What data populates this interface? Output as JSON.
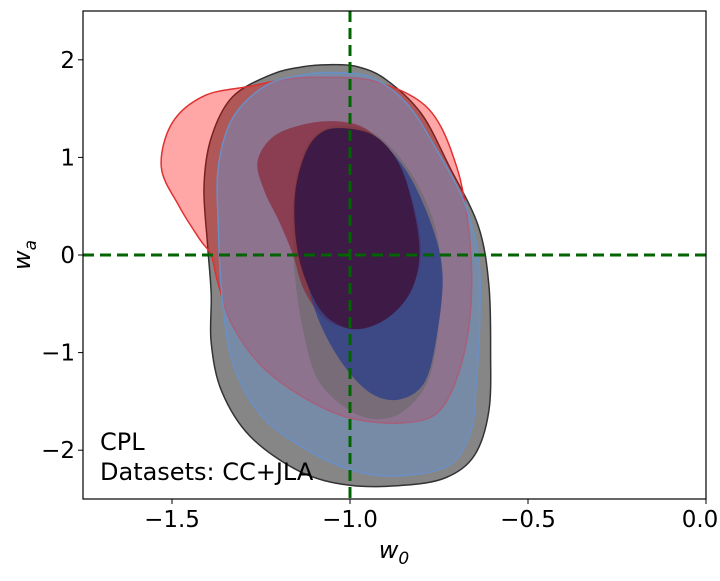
{
  "chart_data": {
    "type": "contour",
    "title": "",
    "xlabel": {
      "main": "w",
      "sub": "0"
    },
    "ylabel": {
      "main": "w",
      "sub": "a"
    },
    "xlim": [
      -1.75,
      0.0
    ],
    "ylim": [
      -2.5,
      2.5
    ],
    "x_ticks": [
      {
        "value": -1.5,
        "label": "−1.5"
      },
      {
        "value": -1.0,
        "label": "−1.0"
      },
      {
        "value": -0.5,
        "label": "−0.5"
      },
      {
        "value": 0.0,
        "label": "0.0"
      }
    ],
    "y_ticks": [
      {
        "value": 2,
        "label": "2"
      },
      {
        "value": 1,
        "label": "1"
      },
      {
        "value": 0,
        "label": "0"
      },
      {
        "value": -1,
        "label": "−1"
      },
      {
        "value": -2,
        "label": "−2"
      }
    ],
    "grid": false,
    "reference_lines": {
      "x": -1.0,
      "y": 0.0,
      "color": "#006400",
      "style": "dashed"
    },
    "annotation": {
      "line1": "CPL",
      "line2": "Datasets: CC+JLA"
    },
    "contours": [
      {
        "id": "gray-outer",
        "fill": "#808080",
        "fill_opacity": 0.95,
        "stroke": "#333333",
        "points": [
          [
            -1.06,
            1.95
          ],
          [
            -0.98,
            1.93
          ],
          [
            -0.9,
            1.8
          ],
          [
            -0.8,
            1.45
          ],
          [
            -0.72,
            0.9
          ],
          [
            -0.64,
            0.3
          ],
          [
            -0.61,
            -0.3
          ],
          [
            -0.605,
            -1.0
          ],
          [
            -0.61,
            -1.6
          ],
          [
            -0.65,
            -2.05
          ],
          [
            -0.73,
            -2.28
          ],
          [
            -0.85,
            -2.36
          ],
          [
            -1.0,
            -2.36
          ],
          [
            -1.14,
            -2.22
          ],
          [
            -1.28,
            -1.86
          ],
          [
            -1.36,
            -1.4
          ],
          [
            -1.39,
            -0.9
          ],
          [
            -1.39,
            -0.4
          ],
          [
            -1.4,
            0.1
          ],
          [
            -1.41,
            0.7
          ],
          [
            -1.39,
            1.2
          ],
          [
            -1.33,
            1.62
          ],
          [
            -1.22,
            1.85
          ],
          [
            -1.13,
            1.93
          ]
        ]
      },
      {
        "id": "red-outer",
        "fill": "#ff0000",
        "fill_opacity": 0.35,
        "stroke": "#e03030",
        "points": [
          [
            -1.09,
            1.82
          ],
          [
            -0.93,
            1.78
          ],
          [
            -0.78,
            1.5
          ],
          [
            -0.7,
            0.9
          ],
          [
            -0.665,
            0.2
          ],
          [
            -0.66,
            -0.5
          ],
          [
            -0.69,
            -1.15
          ],
          [
            -0.75,
            -1.6
          ],
          [
            -0.85,
            -1.72
          ],
          [
            -1.0,
            -1.67
          ],
          [
            -1.13,
            -1.46
          ],
          [
            -1.25,
            -1.13
          ],
          [
            -1.33,
            -0.72
          ],
          [
            -1.37,
            -0.3
          ],
          [
            -1.39,
            0.0
          ],
          [
            -1.42,
            0.15
          ],
          [
            -1.48,
            0.5
          ],
          [
            -1.53,
            0.9
          ],
          [
            -1.5,
            1.35
          ],
          [
            -1.41,
            1.63
          ],
          [
            -1.28,
            1.73
          ],
          [
            -1.18,
            1.8
          ]
        ]
      },
      {
        "id": "blue-outer",
        "fill": "#6a8fc5",
        "fill_opacity": 0.5,
        "stroke": "#6a8fc5",
        "points": [
          [
            -1.05,
            1.87
          ],
          [
            -0.94,
            1.82
          ],
          [
            -0.84,
            1.55
          ],
          [
            -0.76,
            1.1
          ],
          [
            -0.68,
            0.55
          ],
          [
            -0.64,
            0.0
          ],
          [
            -0.635,
            -0.6
          ],
          [
            -0.645,
            -1.3
          ],
          [
            -0.66,
            -1.8
          ],
          [
            -0.72,
            -2.15
          ],
          [
            -0.85,
            -2.26
          ],
          [
            -0.98,
            -2.22
          ],
          [
            -1.12,
            -2.0
          ],
          [
            -1.25,
            -1.64
          ],
          [
            -1.33,
            -1.1
          ],
          [
            -1.36,
            -0.4
          ],
          [
            -1.37,
            0.3
          ],
          [
            -1.37,
            0.9
          ],
          [
            -1.33,
            1.4
          ],
          [
            -1.24,
            1.73
          ],
          [
            -1.14,
            1.84
          ]
        ]
      },
      {
        "id": "gray-inner",
        "fill": "#666666",
        "fill_opacity": 0.55,
        "stroke": "none",
        "points": [
          [
            -1.03,
            1.33
          ],
          [
            -0.93,
            1.24
          ],
          [
            -0.84,
            0.9
          ],
          [
            -0.77,
            0.4
          ],
          [
            -0.745,
            -0.1
          ],
          [
            -0.75,
            -0.7
          ],
          [
            -0.78,
            -1.28
          ],
          [
            -0.85,
            -1.6
          ],
          [
            -0.93,
            -1.68
          ],
          [
            -1.01,
            -1.57
          ],
          [
            -1.09,
            -1.28
          ],
          [
            -1.13,
            -0.8
          ],
          [
            -1.155,
            -0.2
          ],
          [
            -1.16,
            0.5
          ],
          [
            -1.14,
            0.95
          ],
          [
            -1.1,
            1.22
          ]
        ]
      },
      {
        "id": "red-inner",
        "fill": "#8b1a2a",
        "fill_opacity": 0.6,
        "stroke": "none",
        "points": [
          [
            -1.04,
            1.37
          ],
          [
            -0.95,
            1.28
          ],
          [
            -0.87,
            0.95
          ],
          [
            -0.82,
            0.5
          ],
          [
            -0.8,
            0.0
          ],
          [
            -0.83,
            -0.35
          ],
          [
            -0.9,
            -0.63
          ],
          [
            -0.99,
            -0.75
          ],
          [
            -1.07,
            -0.66
          ],
          [
            -1.13,
            -0.35
          ],
          [
            -1.16,
            0.0
          ],
          [
            -1.2,
            0.35
          ],
          [
            -1.24,
            0.65
          ],
          [
            -1.26,
            0.95
          ],
          [
            -1.22,
            1.2
          ],
          [
            -1.14,
            1.33
          ]
        ]
      },
      {
        "id": "blue-inner",
        "fill": "#2a3d8a",
        "fill_opacity": 0.75,
        "stroke": "none",
        "points": [
          [
            -1.03,
            1.3
          ],
          [
            -0.93,
            1.2
          ],
          [
            -0.84,
            0.85
          ],
          [
            -0.77,
            0.3
          ],
          [
            -0.74,
            -0.2
          ],
          [
            -0.755,
            -0.8
          ],
          [
            -0.79,
            -1.3
          ],
          [
            -0.86,
            -1.48
          ],
          [
            -0.94,
            -1.42
          ],
          [
            -1.02,
            -1.12
          ],
          [
            -1.09,
            -0.65
          ],
          [
            -1.13,
            -0.1
          ],
          [
            -1.15,
            0.5
          ],
          [
            -1.13,
            0.95
          ],
          [
            -1.09,
            1.22
          ]
        ]
      },
      {
        "id": "overlap-core",
        "fill": "#3e1640",
        "fill_opacity": 0.9,
        "stroke": "none",
        "points": [
          [
            -1.03,
            1.3
          ],
          [
            -0.93,
            1.22
          ],
          [
            -0.86,
            0.92
          ],
          [
            -0.82,
            0.45
          ],
          [
            -0.805,
            0.0
          ],
          [
            -0.83,
            -0.38
          ],
          [
            -0.9,
            -0.66
          ],
          [
            -0.99,
            -0.76
          ],
          [
            -1.07,
            -0.62
          ],
          [
            -1.12,
            -0.3
          ],
          [
            -1.15,
            0.1
          ],
          [
            -1.155,
            0.6
          ],
          [
            -1.13,
            1.0
          ],
          [
            -1.09,
            1.23
          ]
        ]
      }
    ]
  }
}
